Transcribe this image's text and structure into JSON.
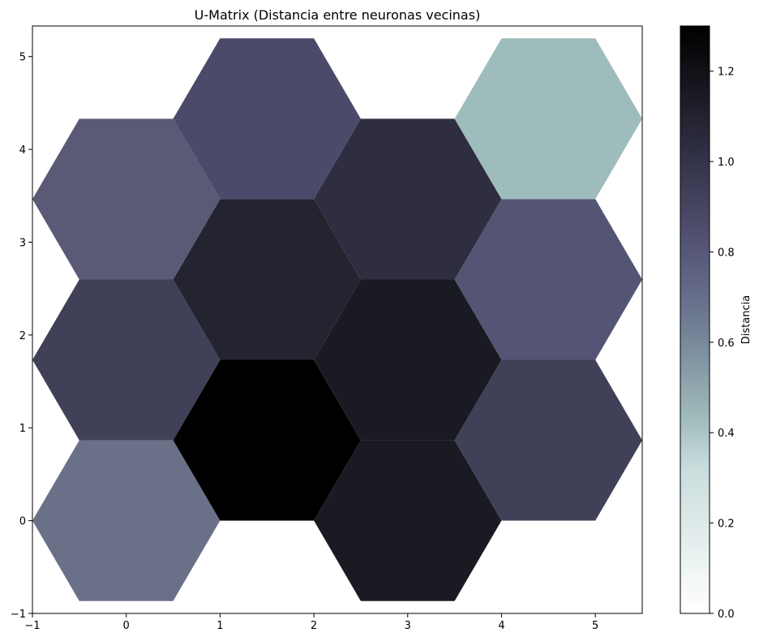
{
  "chart_data": {
    "type": "heatmap",
    "subtype": "hexagonal-u-matrix",
    "title": "U-Matrix (Distancia entre neuronas vecinas)",
    "xlabel": "",
    "ylabel": "",
    "xlim": [
      -1,
      5.5
    ],
    "ylim": [
      -1,
      5.33
    ],
    "x_ticks": [
      -1,
      0,
      1,
      2,
      3,
      4,
      5
    ],
    "y_ticks": [
      -1,
      0,
      1,
      2,
      3,
      4,
      5
    ],
    "grid": false,
    "colormap": "bone_r",
    "colorbar": {
      "label": "Distancia",
      "range": [
        0.0,
        1.3
      ],
      "ticks": [
        "0.0",
        "0.2",
        "0.4",
        "0.6",
        "0.8",
        "1.0",
        "1.2"
      ]
    },
    "cells": [
      {
        "x": 0,
        "y": 0,
        "value": 0.7
      },
      {
        "x": 1.5,
        "y": 0.866,
        "value": 1.3
      },
      {
        "x": 3,
        "y": 0,
        "value": 1.18
      },
      {
        "x": 4.5,
        "y": 0.866,
        "value": 0.95
      },
      {
        "x": 0,
        "y": 1.732,
        "value": 0.95
      },
      {
        "x": 1.5,
        "y": 2.598,
        "value": 1.1
      },
      {
        "x": 3,
        "y": 1.732,
        "value": 1.18
      },
      {
        "x": 4.5,
        "y": 2.598,
        "value": 0.82
      },
      {
        "x": 0,
        "y": 3.464,
        "value": 0.78
      },
      {
        "x": 1.5,
        "y": 4.33,
        "value": 0.87
      },
      {
        "x": 3,
        "y": 3.464,
        "value": 1.02
      },
      {
        "x": 4.5,
        "y": 4.33,
        "value": 0.4
      }
    ],
    "cell_colors": [
      "#6a7088",
      "#000000",
      "#1a1a22",
      "#404058",
      "#404058",
      "#242430",
      "#1a1a22",
      "#545474",
      "#5a5a76",
      "#4c4a6a",
      "#2e2e40",
      "#9fbcbc"
    ]
  }
}
